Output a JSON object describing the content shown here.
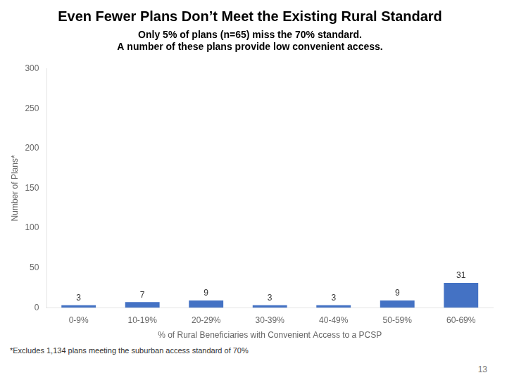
{
  "chart_data": {
    "type": "bar",
    "title": "Even Fewer Plans Don’t Meet the Existing Rural Standard",
    "subtitle": [
      "Only 5% of plans (n=65) miss the 70% standard.",
      "A number of these plans provide low convenient access."
    ],
    "categories": [
      "0-9%",
      "10-19%",
      "20-29%",
      "30-39%",
      "40-49%",
      "50-59%",
      "60-69%"
    ],
    "values": [
      3,
      7,
      9,
      3,
      3,
      9,
      31
    ],
    "color": "#4472C4",
    "ylabel": "Number of Plans*",
    "xlabel": "% of Rural Beneficiaries with Convenient Access to a PCSP",
    "ylim": [
      0,
      300
    ],
    "yticks": [
      0,
      50,
      100,
      150,
      200,
      250,
      300
    ],
    "grid": false,
    "legend": false,
    "data_labels": true,
    "footnote": "*Excludes 1,134 plans meeting the suburban access standard of 70%",
    "page_number": "13"
  }
}
